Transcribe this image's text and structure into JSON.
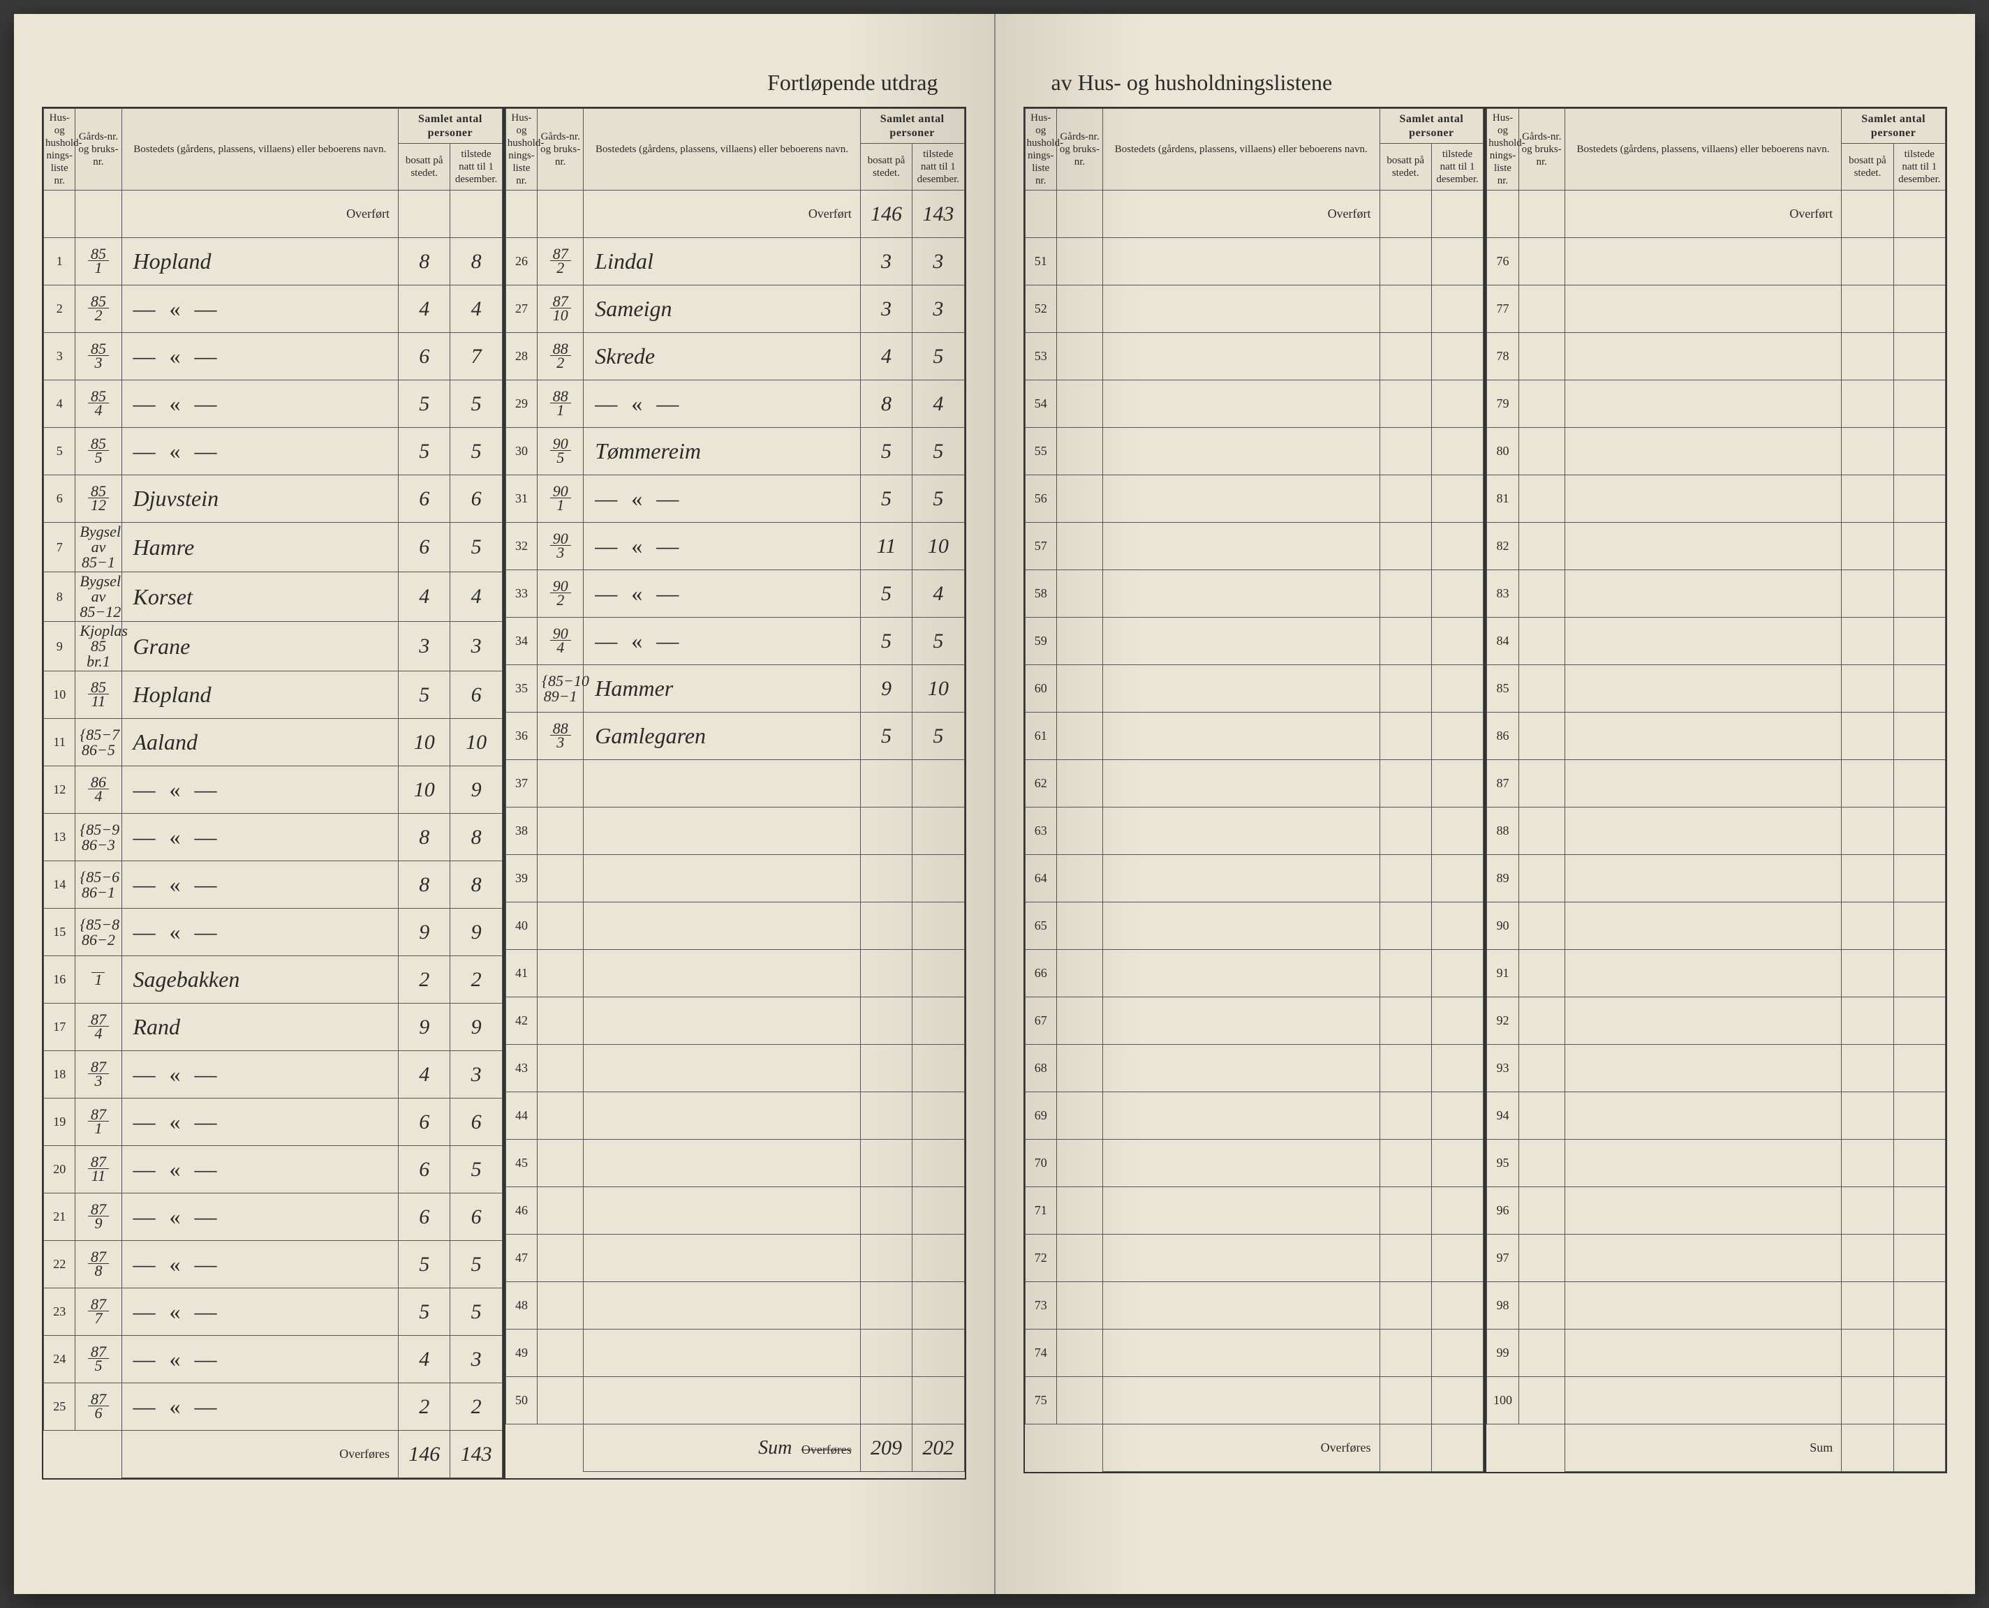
{
  "title_left": "Fortløpende utdrag",
  "title_right": "av Hus- og husholdningslistene",
  "headers": {
    "liste": "Hus- og hushold-nings-liste nr.",
    "gard": "Gårds-nr. og bruks-nr.",
    "bosted": "Bostedets (gårdens, plassens, villaens) eller beboerens navn.",
    "samlet": "Samlet antal personer",
    "bosatt": "bosatt på stedet.",
    "tilstede": "tilstede natt til 1 desember."
  },
  "overfort": "Overført",
  "overfores": "Overføres",
  "sum": "Sum",
  "carry": {
    "bosatt": "146",
    "tilstede": "143"
  },
  "panel1": {
    "rows": [
      {
        "n": "1",
        "g": "85/1",
        "name": "Hopland",
        "b": "8",
        "t": "8"
      },
      {
        "n": "2",
        "g": "85/2",
        "name": "— « —",
        "b": "4",
        "t": "4"
      },
      {
        "n": "3",
        "g": "85/3",
        "name": "— « —",
        "b": "6",
        "t": "7"
      },
      {
        "n": "4",
        "g": "85/4",
        "name": "— « —",
        "b": "5",
        "t": "5"
      },
      {
        "n": "5",
        "g": "85/5",
        "name": "— « —",
        "b": "5",
        "t": "5"
      },
      {
        "n": "6",
        "g": "85/12",
        "name": "Djuvstein",
        "b": "6",
        "t": "6"
      },
      {
        "n": "7",
        "g": "Bygsel av 85−1",
        "name": "Hamre",
        "b": "6",
        "t": "5"
      },
      {
        "n": "8",
        "g": "Bygsel av 85−12",
        "name": "Korset",
        "b": "4",
        "t": "4"
      },
      {
        "n": "9",
        "g": "Kjoplas 85 br.1",
        "name": "Grane",
        "b": "3",
        "t": "3"
      },
      {
        "n": "10",
        "g": "85/11",
        "name": "Hopland",
        "b": "5",
        "t": "6"
      },
      {
        "n": "11",
        "g": "{85−7 86−5",
        "name": "Aaland",
        "b": "10",
        "t": "10"
      },
      {
        "n": "12",
        "g": "86/4",
        "name": "— « —",
        "b": "10",
        "t": "9"
      },
      {
        "n": "13",
        "g": "{85−9 86−3",
        "name": "— « —",
        "b": "8",
        "t": "8"
      },
      {
        "n": "14",
        "g": "{85−6 86−1",
        "name": "— « —",
        "b": "8",
        "t": "8"
      },
      {
        "n": "15",
        "g": "{85−8 86−2",
        "name": "— « —",
        "b": "9",
        "t": "9"
      },
      {
        "n": "16",
        "g": "/1",
        "name": "Sagebakken",
        "b": "2",
        "t": "2"
      },
      {
        "n": "17",
        "g": "87/4",
        "name": "Rand",
        "b": "9",
        "t": "9"
      },
      {
        "n": "18",
        "g": "87/3",
        "name": "— « —",
        "b": "4",
        "t": "3"
      },
      {
        "n": "19",
        "g": "87/1",
        "name": "— « —",
        "b": "6",
        "t": "6"
      },
      {
        "n": "20",
        "g": "87/11",
        "name": "— « —",
        "b": "6",
        "t": "5"
      },
      {
        "n": "21",
        "g": "87/9",
        "name": "— « —",
        "b": "6",
        "t": "6"
      },
      {
        "n": "22",
        "g": "87/8",
        "name": "— « —",
        "b": "5",
        "t": "5"
      },
      {
        "n": "23",
        "g": "87/7",
        "name": "— « —",
        "b": "5",
        "t": "5"
      },
      {
        "n": "24",
        "g": "87/5",
        "name": "— « —",
        "b": "4",
        "t": "3"
      },
      {
        "n": "25",
        "g": "87/6",
        "name": "— « —",
        "b": "2",
        "t": "2"
      }
    ],
    "footer": {
      "label": "Overføres",
      "b": "146",
      "t": "143"
    }
  },
  "panel2": {
    "rows": [
      {
        "n": "26",
        "g": "87/2",
        "name": "Lindal",
        "b": "3",
        "t": "3"
      },
      {
        "n": "27",
        "g": "87/10",
        "name": "Sameign",
        "b": "3",
        "t": "3"
      },
      {
        "n": "28",
        "g": "88/2",
        "name": "Skrede",
        "b": "4",
        "t": "5"
      },
      {
        "n": "29",
        "g": "88/1",
        "name": "— « —",
        "b": "8",
        "t": "4"
      },
      {
        "n": "30",
        "g": "90/5",
        "name": "Tømmereim",
        "b": "5",
        "t": "5"
      },
      {
        "n": "31",
        "g": "90/1",
        "name": "— « —",
        "b": "5",
        "t": "5"
      },
      {
        "n": "32",
        "g": "90/3",
        "name": "— « —",
        "b": "11",
        "t": "10"
      },
      {
        "n": "33",
        "g": "90/2",
        "name": "— « —",
        "b": "5",
        "t": "4"
      },
      {
        "n": "34",
        "g": "90/4",
        "name": "— « —",
        "b": "5",
        "t": "5"
      },
      {
        "n": "35",
        "g": "{85−10 89−1",
        "name": "Hammer",
        "b": "9",
        "t": "10"
      },
      {
        "n": "36",
        "g": "88/3",
        "name": "Gamlegaren",
        "b": "5",
        "t": "5"
      },
      {
        "n": "37",
        "g": "",
        "name": "",
        "b": "",
        "t": ""
      },
      {
        "n": "38",
        "g": "",
        "name": "",
        "b": "",
        "t": ""
      },
      {
        "n": "39",
        "g": "",
        "name": "",
        "b": "",
        "t": ""
      },
      {
        "n": "40",
        "g": "",
        "name": "",
        "b": "",
        "t": ""
      },
      {
        "n": "41",
        "g": "",
        "name": "",
        "b": "",
        "t": ""
      },
      {
        "n": "42",
        "g": "",
        "name": "",
        "b": "",
        "t": ""
      },
      {
        "n": "43",
        "g": "",
        "name": "",
        "b": "",
        "t": ""
      },
      {
        "n": "44",
        "g": "",
        "name": "",
        "b": "",
        "t": ""
      },
      {
        "n": "45",
        "g": "",
        "name": "",
        "b": "",
        "t": ""
      },
      {
        "n": "46",
        "g": "",
        "name": "",
        "b": "",
        "t": ""
      },
      {
        "n": "47",
        "g": "",
        "name": "",
        "b": "",
        "t": ""
      },
      {
        "n": "48",
        "g": "",
        "name": "",
        "b": "",
        "t": ""
      },
      {
        "n": "49",
        "g": "",
        "name": "",
        "b": "",
        "t": ""
      },
      {
        "n": "50",
        "g": "",
        "name": "",
        "b": "",
        "t": ""
      }
    ],
    "footer": {
      "label": "Sum  Overføres",
      "b": "209",
      "t": "202",
      "strike": true
    }
  },
  "panel3": {
    "rows": [
      {
        "n": "51"
      },
      {
        "n": "52"
      },
      {
        "n": "53"
      },
      {
        "n": "54"
      },
      {
        "n": "55"
      },
      {
        "n": "56"
      },
      {
        "n": "57"
      },
      {
        "n": "58"
      },
      {
        "n": "59"
      },
      {
        "n": "60"
      },
      {
        "n": "61"
      },
      {
        "n": "62"
      },
      {
        "n": "63"
      },
      {
        "n": "64"
      },
      {
        "n": "65"
      },
      {
        "n": "66"
      },
      {
        "n": "67"
      },
      {
        "n": "68"
      },
      {
        "n": "69"
      },
      {
        "n": "70"
      },
      {
        "n": "71"
      },
      {
        "n": "72"
      },
      {
        "n": "73"
      },
      {
        "n": "74"
      },
      {
        "n": "75"
      }
    ],
    "footer": {
      "label": "Overføres"
    }
  },
  "panel4": {
    "rows": [
      {
        "n": "76"
      },
      {
        "n": "77"
      },
      {
        "n": "78"
      },
      {
        "n": "79"
      },
      {
        "n": "80"
      },
      {
        "n": "81"
      },
      {
        "n": "82"
      },
      {
        "n": "83"
      },
      {
        "n": "84"
      },
      {
        "n": "85"
      },
      {
        "n": "86"
      },
      {
        "n": "87"
      },
      {
        "n": "88"
      },
      {
        "n": "89"
      },
      {
        "n": "90"
      },
      {
        "n": "91"
      },
      {
        "n": "92"
      },
      {
        "n": "93"
      },
      {
        "n": "94"
      },
      {
        "n": "95"
      },
      {
        "n": "96"
      },
      {
        "n": "97"
      },
      {
        "n": "98"
      },
      {
        "n": "99"
      },
      {
        "n": "100"
      }
    ],
    "footer": {
      "label": "Sum"
    }
  },
  "colors": {
    "paper": "#ebe5d6",
    "ink": "#2a2a2a",
    "rule": "#555555",
    "handwriting": "#2a2a2a"
  }
}
